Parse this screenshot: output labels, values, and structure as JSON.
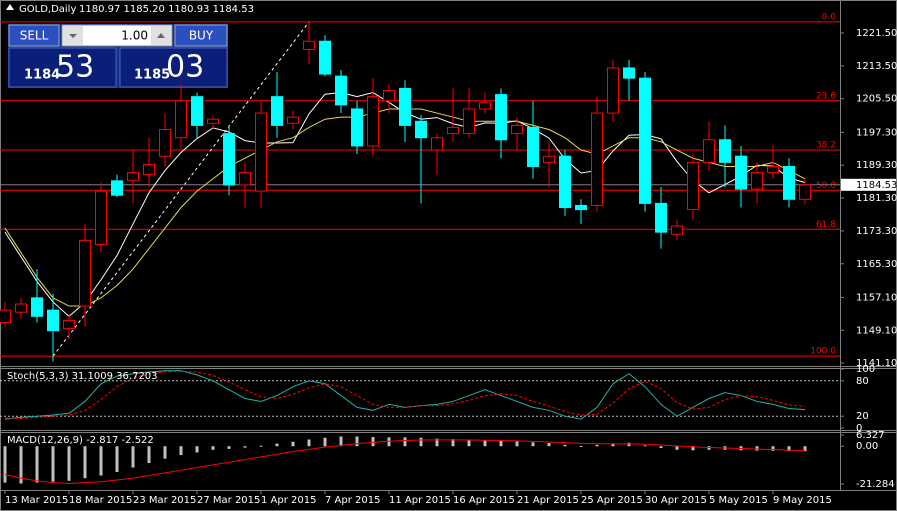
{
  "header": {
    "symbol": "GOLD,Daily",
    "quote": "1180.97 1185.20 1180.93 1184.53"
  },
  "trade_panel": {
    "sell": "SELL",
    "buy": "BUY",
    "lots": "1.00",
    "bid_main": "1184",
    "bid_pips": "53",
    "ask_main": "1185",
    "ask_pips": "03"
  },
  "chart_data": [
    {
      "type": "candlestick",
      "categories": [
        "13 Mar 2015",
        null,
        null,
        null,
        "18 Mar 2015",
        null,
        null,
        null,
        "23 Mar 2015",
        null,
        null,
        null,
        "27 Mar 2015",
        null,
        null,
        null,
        "1 Apr 2015",
        null,
        null,
        null,
        "7 Apr 2015",
        null,
        null,
        null,
        "11 Apr 2015",
        null,
        null,
        null,
        "16 Apr 2015",
        null,
        null,
        null,
        "21 Apr 2015",
        null,
        null,
        null,
        "25 Apr 2015",
        null,
        null,
        null,
        "30 Apr 2015",
        null,
        null,
        null,
        "5 May 2015",
        null,
        null,
        null,
        "9 May 2015",
        null,
        null
      ],
      "open": [
        1151,
        1153.5,
        1157,
        1154,
        1149.5,
        1155,
        1170,
        1185.5,
        1185.5,
        1187,
        1191.5,
        1196,
        1206,
        1199.5,
        1197,
        1184.5,
        1183,
        1206,
        1199.5,
        1217.5,
        1219.5,
        1211,
        1203,
        1194,
        1205,
        1208,
        1200,
        1193,
        1197,
        1197,
        1203,
        1206.5,
        1197,
        1198.5,
        1190,
        1191.5,
        1179.5,
        1179.5,
        1202,
        1213,
        1210.5,
        1180,
        1172.5,
        1178.5,
        1190,
        1195.5,
        1191.5,
        1183.5,
        1187.5,
        1189,
        1181
      ],
      "high": [
        1156,
        1157,
        1164,
        1158,
        1153,
        1175,
        1185,
        1187,
        1193,
        1196,
        1202,
        1209,
        1207,
        1201,
        1199,
        1190,
        1205,
        1212,
        1202.5,
        1224.5,
        1221,
        1212.5,
        1205,
        1210.5,
        1209,
        1210,
        1201.5,
        1197,
        1208,
        1208,
        1207,
        1208,
        1201,
        1205,
        1195,
        1193,
        1181,
        1206,
        1215,
        1215,
        1212,
        1184,
        1176,
        1192,
        1200,
        1199,
        1194,
        1190,
        1194,
        1191,
        1186
      ],
      "low": [
        1150,
        1152,
        1151,
        1141.5,
        1147,
        1150,
        1168,
        1181.5,
        1180,
        1184,
        1189,
        1193,
        1196,
        1198,
        1182,
        1179,
        1179,
        1196,
        1198,
        1214,
        1211,
        1202,
        1192,
        1191.5,
        1202,
        1195,
        1180,
        1187,
        1195,
        1196,
        1202,
        1191,
        1193,
        1186,
        1184,
        1177,
        1175,
        1178,
        1200,
        1205,
        1178,
        1169,
        1171,
        1176,
        1188,
        1184,
        1179,
        1180,
        1186,
        1179,
        1180
      ],
      "close": [
        1154,
        1155.5,
        1152.5,
        1149,
        1151.5,
        1171,
        1183,
        1182,
        1187.5,
        1189.5,
        1198,
        1205,
        1199,
        1200.5,
        1184.5,
        1187.5,
        1202,
        1199,
        1201,
        1219.5,
        1211.5,
        1204,
        1194,
        1206,
        1207.5,
        1199,
        1196,
        1196,
        1198.5,
        1203,
        1204.5,
        1195.5,
        1199,
        1189,
        1191.5,
        1179,
        1178.5,
        1202,
        1213,
        1210.5,
        1180,
        1173,
        1174.5,
        1190,
        1195.5,
        1190,
        1183.5,
        1187.5,
        1189,
        1181,
        1184.5
      ],
      "up_color": "#ff0000",
      "down_color": "#00ffff",
      "series": [
        {
          "color": "#ffffff",
          "values": [
            1173,
            1167,
            1161,
            1156,
            1152.5,
            1155.9,
            1161.4,
            1167.3,
            1175,
            1182.6,
            1188,
            1192.4,
            1195.8,
            1198.4,
            1197.4,
            1195.3,
            1194.7,
            1194.7,
            1194.8,
            1201.8,
            1206.6,
            1207,
            1206,
            1207,
            1204.6,
            1202.1,
            1200.5,
            1200.9,
            1199.4,
            1198.5,
            1199.6,
            1199.5,
            1200.1,
            1198.2,
            1195.9,
            1190.8,
            1187.4,
            1188,
            1192.8,
            1196.6,
            1196.8,
            1195.7,
            1190.2,
            1185.6,
            1182.6,
            1184.6,
            1186.7,
            1189.3,
            1189.1,
            1186.2,
            1185.1
          ]
        },
        {
          "color": "#e8d84a",
          "values": [
            1174,
            1168,
            1162,
            1157,
            1155,
            1155,
            1157,
            1160,
            1164,
            1169,
            1174,
            1179,
            1183,
            1186,
            1189,
            1191,
            1193,
            1195,
            1196,
            1198.5,
            1200.5,
            1201,
            1201,
            1202,
            1203,
            1203,
            1203,
            1202,
            1201,
            1200,
            1200,
            1200,
            1200,
            1199,
            1198,
            1196,
            1193,
            1192,
            1194,
            1196,
            1196,
            1195,
            1193,
            1191,
            1190,
            1189,
            1189,
            1189,
            1190,
            1188,
            1186
          ]
        }
      ],
      "levels": [
        {
          "label": "0.0",
          "value": 1224.2
        },
        {
          "label": "23.6",
          "value": 1205
        },
        {
          "label": "38.2",
          "value": 1193
        },
        {
          "label": "50.0",
          "value": 1183.2
        },
        {
          "label": "61.8",
          "value": 1173.7
        },
        {
          "label": "100.0",
          "value": 1142.8
        }
      ],
      "level_color": "#ff0000",
      "current_price": {
        "value": 1184.53,
        "label": "1184.53"
      },
      "ylim": [
        1140.4,
        1225.4
      ],
      "yticks": [
        {
          "value": 1221.5,
          "label": "1221.50"
        },
        {
          "value": 1213.5,
          "label": "1213.50"
        },
        {
          "value": 1205.5,
          "label": "1205.50"
        },
        {
          "value": 1197.3,
          "label": "1197.30"
        },
        {
          "value": 1189.3,
          "label": "1189.30"
        },
        {
          "value": 1181.3,
          "label": "1181.30"
        },
        {
          "value": 1173.3,
          "label": "1173.30"
        },
        {
          "value": 1165.3,
          "label": "1165.30"
        },
        {
          "value": 1157.1,
          "label": "1157.10"
        },
        {
          "value": 1149.1,
          "label": "1149.10"
        },
        {
          "value": 1141.1,
          "label": "1141.10"
        }
      ]
    },
    {
      "type": "line",
      "title": "Stoch(5,3,3) 31.1009 36.7203",
      "ylim": [
        0,
        100
      ],
      "yticks": [
        100,
        80,
        20,
        0
      ],
      "levels": [
        80,
        20
      ],
      "series": [
        {
          "color": "#20b2aa",
          "values": [
            15,
            18,
            20,
            22,
            25,
            45,
            75,
            88,
            92,
            95,
            97,
            97,
            90,
            80,
            65,
            50,
            45,
            55,
            70,
            80,
            75,
            55,
            35,
            30,
            40,
            35,
            38,
            40,
            45,
            55,
            65,
            55,
            45,
            35,
            30,
            20,
            15,
            35,
            75,
            92,
            70,
            40,
            20,
            35,
            50,
            60,
            55,
            45,
            40,
            33,
            31.1
          ]
        },
        {
          "color": "#ff0000",
          "dashed": true,
          "values": [
            17,
            16,
            18,
            20,
            22,
            30,
            48,
            70,
            85,
            92,
            95,
            96,
            95,
            89,
            78,
            65,
            53,
            50,
            57,
            68,
            75,
            70,
            55,
            40,
            35,
            35,
            38,
            38,
            41,
            47,
            55,
            58,
            55,
            45,
            37,
            28,
            22,
            23,
            42,
            67,
            79,
            67,
            43,
            32,
            35,
            48,
            55,
            53,
            47,
            39,
            36.7
          ]
        }
      ]
    },
    {
      "type": "macd",
      "title": "MACD(12,26,9) -2.817 -2.522",
      "ylim": [
        -21.284,
        6.327
      ],
      "yticks": [
        6.327,
        {
          "value": 0,
          "label": "0.00"
        },
        -21.284
      ],
      "histogram": {
        "color": "#c0c0c0",
        "values": [
          -20.5,
          -21,
          -20.5,
          -20,
          -19.5,
          -18,
          -16.5,
          -14.5,
          -12,
          -9.5,
          -7,
          -5,
          -3.5,
          -2,
          -1.5,
          -0.8,
          0.3,
          1.5,
          2.5,
          3.8,
          4.8,
          5.5,
          5.5,
          5.2,
          5,
          5,
          4.8,
          4.3,
          4,
          3.8,
          3.5,
          3,
          2.7,
          2.2,
          1.8,
          0.8,
          0.2,
          0.8,
          1.6,
          2,
          0.5,
          -1,
          -2,
          -2.3,
          -2,
          -2,
          -2.3,
          -2.5,
          -2.6,
          -2.7,
          -2.817
        ]
      },
      "signal": {
        "color": "#ff0000",
        "values": [
          -16,
          -18,
          -19.5,
          -20.5,
          -21,
          -20.5,
          -20,
          -19,
          -18,
          -16.5,
          -15,
          -13.5,
          -12,
          -10.5,
          -9,
          -7.5,
          -6,
          -4.5,
          -3,
          -1.8,
          -0.5,
          0.5,
          1.5,
          2.2,
          2.8,
          3.2,
          3.5,
          3.6,
          3.6,
          3.5,
          3.4,
          3.2,
          3,
          2.7,
          2.4,
          2,
          1.6,
          1.4,
          1.3,
          1.3,
          1.1,
          0.7,
          0.2,
          -0.3,
          -0.7,
          -1,
          -1.3,
          -1.6,
          -1.9,
          -2.2,
          -2.522
        ]
      }
    }
  ]
}
